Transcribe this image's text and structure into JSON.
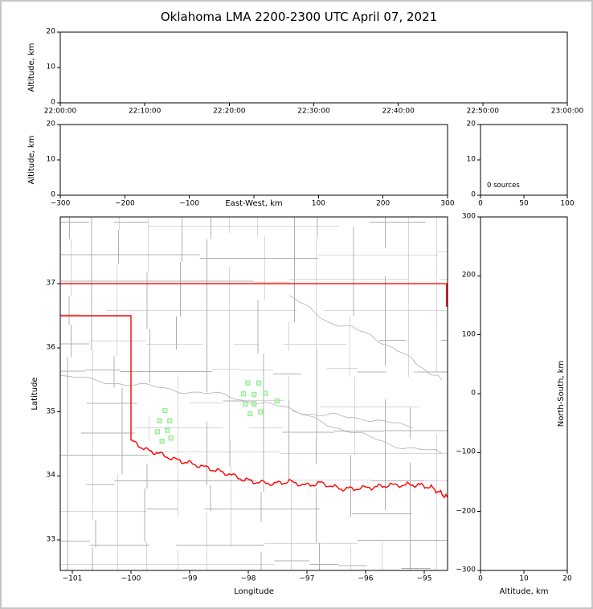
{
  "title": "Oklahoma LMA 2200-2300 UTC April 07, 2021",
  "colors": {
    "axis": "#000000",
    "background": "#ffffff",
    "state_border": "#ff0000",
    "county_lines": "#b0b0b0",
    "station": "#90ee90"
  },
  "chart_data": [
    {
      "id": "time-height",
      "type": "scatter",
      "xlabel": "",
      "ylabel": "Altitude, km",
      "xlim": [
        0,
        60
      ],
      "xtick_values": [
        0,
        10,
        20,
        30,
        40,
        50,
        60
      ],
      "xtick_labels": [
        "22:00:00",
        "22:10:00",
        "22:20:00",
        "22:30:00",
        "22:40:00",
        "22:50:00",
        "23:00:00"
      ],
      "ylim": [
        0,
        20
      ],
      "ytick_values": [
        0,
        10,
        20
      ],
      "points": []
    },
    {
      "id": "ew-height",
      "type": "scatter",
      "xlabel": "East-West, km",
      "ylabel": "Altitude, km",
      "xlim": [
        -300,
        300
      ],
      "xtick_values": [
        -300,
        -200,
        -100,
        0,
        100,
        200,
        300
      ],
      "xtick_labels": [
        "−300",
        "−200",
        "−100",
        "",
        "100",
        "200",
        "300"
      ],
      "ylim": [
        0,
        20
      ],
      "ytick_values": [
        0,
        10,
        20
      ],
      "points": []
    },
    {
      "id": "source-histogram",
      "type": "histogram",
      "annotation": "0 sources",
      "xlim": [
        0,
        100
      ],
      "xtick_values": [
        0,
        50,
        100
      ],
      "ylim": [
        0,
        20
      ],
      "ytick_values": [
        0,
        10,
        20
      ],
      "points": []
    },
    {
      "id": "plan-view",
      "type": "map-scatter",
      "xlabel": "Longitude",
      "ylabel": "Latitude",
      "xlim": [
        -101.205,
        -94.603
      ],
      "xtick_values": [
        -101,
        -100,
        -99,
        -98,
        -97,
        -96,
        -95
      ],
      "ylim": [
        32.524,
        38.042
      ],
      "ytick_values": [
        33,
        34,
        35,
        36,
        37
      ],
      "stations": [
        [
          -98.01,
          35.45
        ],
        [
          -97.82,
          35.45
        ],
        [
          -98.08,
          35.28
        ],
        [
          -97.9,
          35.27
        ],
        [
          -97.71,
          35.29
        ],
        [
          -98.05,
          35.12
        ],
        [
          -97.9,
          35.12
        ],
        [
          -97.97,
          34.97
        ],
        [
          -97.79,
          35.0
        ],
        [
          -97.51,
          35.17
        ],
        [
          -99.42,
          35.02
        ],
        [
          -99.51,
          34.86
        ],
        [
          -99.34,
          34.86
        ],
        [
          -99.55,
          34.69
        ],
        [
          -99.38,
          34.71
        ],
        [
          -99.47,
          34.54
        ],
        [
          -99.32,
          34.59
        ]
      ],
      "borders": {
        "north": [
          [
            -101.21,
            37.0
          ],
          [
            -94.6,
            37.0
          ]
        ],
        "panhandle": [
          [
            -101.21,
            36.5
          ],
          [
            -100.0,
            36.5
          ],
          [
            -100.0,
            34.55
          ]
        ],
        "east": [
          [
            -94.62,
            37.0
          ],
          [
            -94.62,
            36.64
          ]
        ],
        "red_river": [
          [
            -100.0,
            34.55
          ],
          [
            -99.75,
            34.41
          ],
          [
            -99.5,
            34.34
          ],
          [
            -99.2,
            34.24
          ],
          [
            -98.95,
            34.19
          ],
          [
            -98.65,
            34.11
          ],
          [
            -98.4,
            34.05
          ],
          [
            -98.1,
            33.95
          ],
          [
            -97.85,
            33.9
          ],
          [
            -97.55,
            33.88
          ],
          [
            -97.3,
            33.91
          ],
          [
            -97.0,
            33.85
          ],
          [
            -96.75,
            33.89
          ],
          [
            -96.45,
            33.8
          ],
          [
            -96.2,
            33.8
          ],
          [
            -95.9,
            33.82
          ],
          [
            -95.65,
            33.85
          ],
          [
            -95.35,
            33.86
          ],
          [
            -95.1,
            33.86
          ],
          [
            -94.88,
            33.82
          ],
          [
            -94.72,
            33.73
          ],
          [
            -94.6,
            33.66
          ]
        ]
      },
      "rivers": [
        [
          [
            -101.2,
            35.55
          ],
          [
            -100.2,
            35.45
          ],
          [
            -99.3,
            35.35
          ],
          [
            -98.4,
            35.25
          ],
          [
            -97.6,
            35.1
          ],
          [
            -96.8,
            34.95
          ],
          [
            -96.0,
            34.9
          ],
          [
            -95.2,
            34.75
          ]
        ],
        [
          [
            -97.3,
            36.8
          ],
          [
            -96.6,
            36.4
          ],
          [
            -95.9,
            36.2
          ],
          [
            -95.2,
            35.8
          ],
          [
            -94.7,
            35.5
          ]
        ],
        [
          [
            -97.25,
            35.0
          ],
          [
            -96.45,
            34.75
          ],
          [
            -95.6,
            34.5
          ],
          [
            -94.7,
            34.35
          ]
        ]
      ],
      "points": []
    },
    {
      "id": "ns-height",
      "type": "scatter",
      "xlabel": "Altitude, km",
      "ylabel": "North-South, km",
      "xlim": [
        0,
        20
      ],
      "xtick_values": [
        0,
        10,
        20
      ],
      "ylim": [
        -300,
        300
      ],
      "ytick_values": [
        -300,
        -200,
        -100,
        0,
        100,
        200,
        300
      ],
      "points": []
    }
  ]
}
